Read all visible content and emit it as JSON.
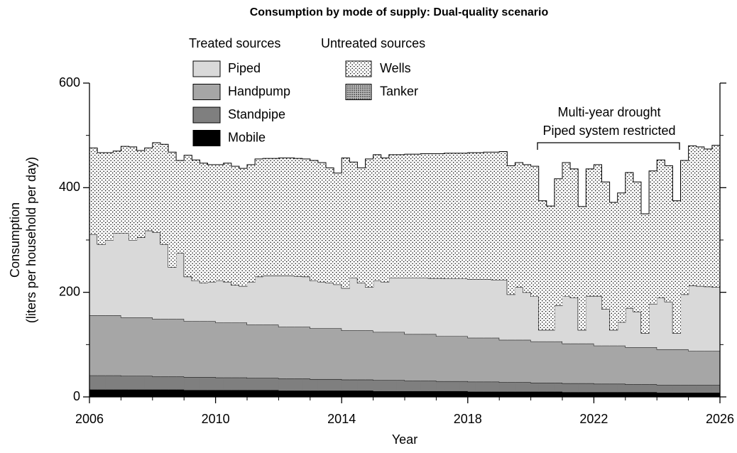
{
  "chart_data": {
    "type": "stacked-step-area",
    "title": "Consumption by mode of supply: Dual-quality scenario",
    "xlabel": "Year",
    "ylabel": [
      "Consumption",
      "(liters per household per day)"
    ],
    "annotation": [
      "Multi-year drought",
      "Piped system restricted"
    ],
    "xlim": [
      2006,
      2026
    ],
    "xticks": [
      2006,
      2010,
      2014,
      2018,
      2022,
      2026
    ],
    "ylim": [
      0,
      600
    ],
    "yticks": [
      0,
      200,
      400,
      600
    ],
    "x": [
      2006,
      2006.25,
      2006.5,
      2006.75,
      2007,
      2007.25,
      2007.5,
      2007.75,
      2008,
      2008.25,
      2008.5,
      2008.75,
      2009,
      2009.25,
      2009.5,
      2009.75,
      2010,
      2010.25,
      2010.5,
      2010.75,
      2011,
      2011.25,
      2011.5,
      2011.75,
      2012,
      2012.25,
      2012.5,
      2012.75,
      2013,
      2013.25,
      2013.5,
      2013.75,
      2014,
      2014.25,
      2014.5,
      2014.75,
      2015,
      2015.25,
      2015.5,
      2015.75,
      2016,
      2016.25,
      2016.5,
      2016.75,
      2017,
      2017.25,
      2017.5,
      2017.75,
      2018,
      2018.25,
      2018.5,
      2018.75,
      2019,
      2019.25,
      2019.5,
      2019.75,
      2020,
      2020.25,
      2020.5,
      2020.75,
      2021,
      2021.25,
      2021.5,
      2021.75,
      2022,
      2022.25,
      2022.5,
      2022.75,
      2023,
      2023.25,
      2023.5,
      2023.75,
      2024,
      2024.25,
      2024.5,
      2024.75,
      2025,
      2025.25,
      2025.5,
      2025.75
    ],
    "groups": [
      {
        "title": "Treated sources",
        "series": [
          {
            "name": "Piped",
            "color": "#d9d9d9",
            "values": [
              155,
              136,
              144,
              157,
              161,
              148,
              153,
              166,
              166,
              143,
              99,
              126,
              85,
              77,
              73,
              75,
              80,
              78,
              72,
              70,
              82,
              92,
              94,
              94,
              98,
              98,
              97,
              96,
              91,
              89,
              87,
              84,
              81,
              101,
              91,
              83,
              98,
              96,
              104,
              104,
              108,
              108,
              108,
              107,
              111,
              110,
              110,
              110,
              112,
              112,
              112,
              111,
              115,
              87,
              101,
              91,
              86,
              22,
              22,
              69,
              90,
              88,
              26,
              91,
              95,
              70,
              30,
              45,
              75,
              68,
              27,
              83,
              99,
              91,
              31,
              105,
              125,
              124,
              123,
              122
            ]
          },
          {
            "name": "Handpump",
            "color": "#a6a6a6",
            "values": [
              115,
              115,
              115,
              115,
              112,
              112,
              112,
              112,
              110,
              110,
              110,
              110,
              107,
              107,
              107,
              107,
              105,
              105,
              105,
              105,
              102,
              102,
              102,
              102,
              99,
              99,
              99,
              99,
              97,
              97,
              97,
              97,
              94,
              94,
              94,
              94,
              92,
              92,
              92,
              92,
              89,
              89,
              89,
              89,
              86,
              86,
              86,
              86,
              84,
              84,
              84,
              84,
              81,
              81,
              81,
              81,
              79,
              79,
              79,
              79,
              76,
              76,
              76,
              76,
              73,
              73,
              73,
              73,
              71,
              71,
              71,
              71,
              68,
              68,
              68,
              68,
              65,
              65,
              65,
              65
            ]
          },
          {
            "name": "Standpipe",
            "color": "#7f7f7f",
            "values": [
              27,
              27,
              27,
              27,
              26,
              26,
              26,
              26,
              25,
              25,
              25,
              25,
              25,
              25,
              25,
              25,
              24,
              24,
              24,
              24,
              23,
              23,
              23,
              23,
              23,
              23,
              23,
              23,
              22,
              22,
              22,
              22,
              21,
              21,
              21,
              21,
              21,
              21,
              21,
              21,
              20,
              20,
              20,
              20,
              19,
              19,
              19,
              19,
              19,
              19,
              19,
              19,
              18,
              18,
              18,
              18,
              17,
              17,
              17,
              17,
              17,
              17,
              17,
              17,
              16,
              16,
              16,
              16,
              15,
              15,
              15,
              15,
              15,
              15,
              15,
              15,
              15,
              15,
              15,
              15
            ]
          },
          {
            "name": "Mobile",
            "color": "#000000",
            "values": [
              14,
              14,
              14,
              14,
              14,
              14,
              14,
              14,
              14,
              14,
              14,
              14,
              13,
              13,
              13,
              13,
              13,
              13,
              13,
              13,
              13,
              13,
              13,
              13,
              12,
              12,
              12,
              12,
              12,
              12,
              12,
              12,
              12,
              12,
              12,
              12,
              11,
              11,
              11,
              11,
              11,
              11,
              11,
              11,
              11,
              11,
              11,
              11,
              10,
              10,
              10,
              10,
              10,
              10,
              10,
              10,
              10,
              10,
              10,
              10,
              9,
              9,
              9,
              9,
              9,
              9,
              9,
              9,
              9,
              9,
              9,
              9,
              8,
              8,
              8,
              8,
              8,
              8,
              8,
              8
            ]
          }
        ]
      },
      {
        "title": "Untreated sources",
        "series": [
          {
            "name": "Wells",
            "color": "#ffffff",
            "pattern": "sparse-dots",
            "values": [
              165,
              175,
              167,
              157,
              166,
              178,
              166,
              158,
              171,
              191,
              220,
              177,
              232,
              231,
              229,
              224,
              222,
              227,
              227,
              225,
              224,
              225,
              224,
              224,
              225,
              225,
              225,
              225,
              230,
              228,
              220,
              213,
              249,
              221,
              220,
              245,
              241,
              237,
              235,
              235,
              236,
              236,
              237,
              238,
              238,
              240,
              240,
              240,
              242,
              242,
              243,
              244,
              245,
              246,
              238,
              244,
              249,
              247,
              237,
              242,
              256,
              246,
              236,
              243,
              251,
              243,
              244,
              247,
              259,
              248,
              228,
              254,
              263,
              260,
              253,
              256,
              267,
              266,
              263,
              271
            ]
          },
          {
            "name": "Tanker",
            "color": "#bfbfbf",
            "pattern": "dense-dots",
            "values": [
              0,
              0,
              0,
              0,
              0,
              0,
              0,
              0,
              0,
              0,
              0,
              0,
              0,
              0,
              0,
              0,
              0,
              0,
              0,
              0,
              0,
              0,
              0,
              0,
              0,
              0,
              0,
              0,
              0,
              0,
              0,
              0,
              0,
              0,
              0,
              0,
              0,
              0,
              0,
              0,
              0,
              0,
              0,
              0,
              0,
              0,
              0,
              0,
              0,
              0,
              0,
              0,
              0,
              0,
              0,
              0,
              0,
              0,
              0,
              0,
              0,
              0,
              0,
              0,
              0,
              0,
              0,
              0,
              0,
              0,
              0,
              0,
              0,
              0,
              0,
              0,
              0,
              0,
              0,
              0
            ]
          }
        ]
      }
    ]
  }
}
